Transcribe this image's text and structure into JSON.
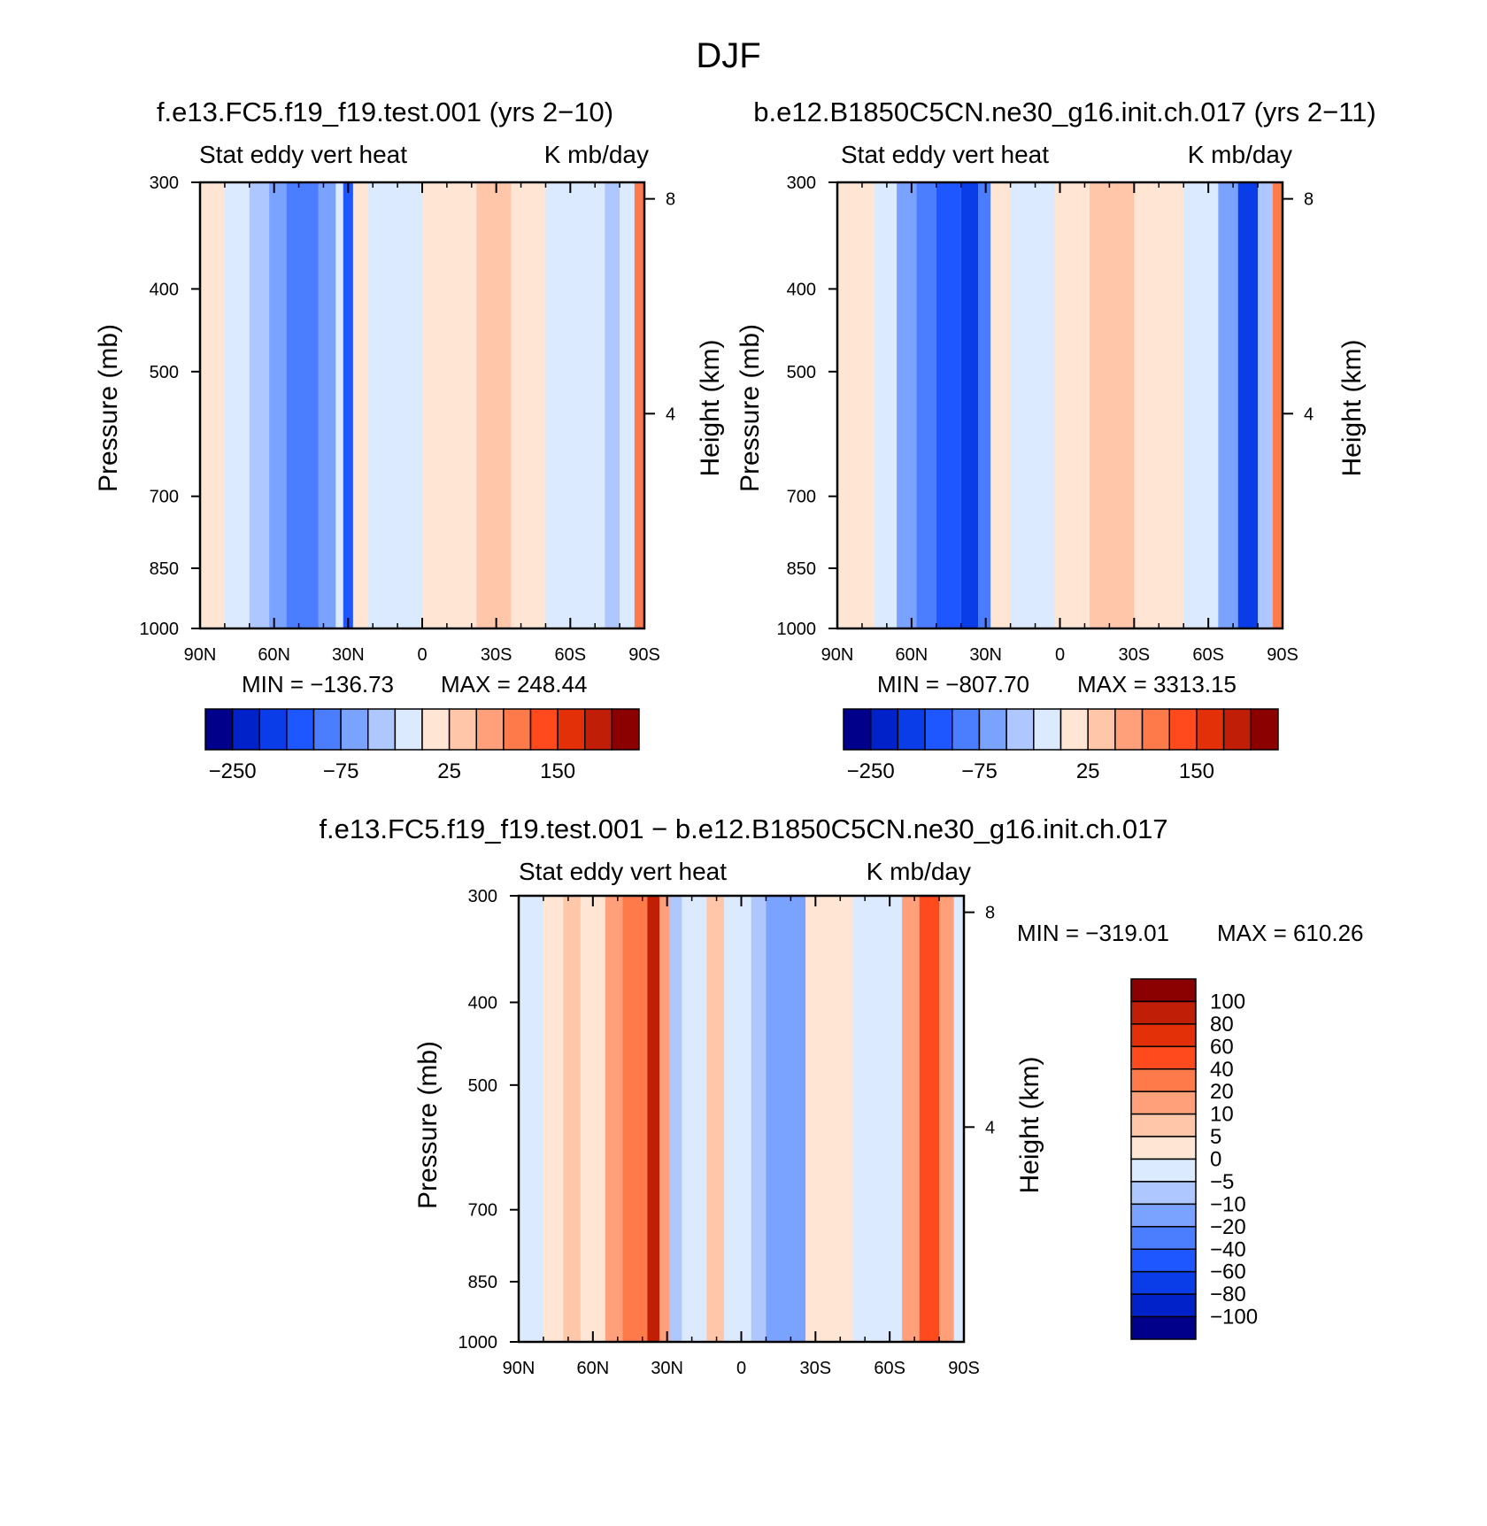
{
  "page_title": "DJF",
  "palette_main": [
    "#00008b",
    "#0022c8",
    "#0a3de8",
    "#1e56ff",
    "#4a7dff",
    "#7aa3ff",
    "#aec8ff",
    "#dbeaff",
    "#ffe5d4",
    "#ffc6aa",
    "#ffa07a",
    "#ff7a4a",
    "#ff4a1e",
    "#e43008",
    "#c01e06",
    "#8b0000"
  ],
  "chart_data": [
    {
      "type": "heatmap",
      "title": "f.e13.FC5.f19_f19.test.001 (yrs 2−10)",
      "variable": "Stat eddy vert heat",
      "units": "K mb/day",
      "xlabel": "",
      "ylabel": "Pressure (mb)",
      "y2label": "Height (km)",
      "x_ticks": [
        "90N",
        "60N",
        "30N",
        "0",
        "30S",
        "60S",
        "90S"
      ],
      "x_tick_values": [
        90,
        60,
        30,
        0,
        -30,
        -60,
        -90
      ],
      "y_ticks": [
        "300",
        "400",
        "500",
        "700",
        "850",
        "1000"
      ],
      "y_tick_values": [
        300,
        400,
        500,
        700,
        850,
        1000
      ],
      "y2_ticks": [
        "8",
        "4"
      ],
      "y2_tick_values": [
        8,
        4
      ],
      "xlim": [
        90,
        -90
      ],
      "ylim": [
        300,
        1000
      ],
      "min_label": "MIN = −136.73",
      "max_label": "MAX = 248.44",
      "colorbar_labels": [
        "−250",
        "−75",
        "25",
        "150"
      ],
      "bands": [
        {
          "lat": [
            90,
            80
          ],
          "v": 1
        },
        {
          "lat": [
            80,
            70
          ],
          "v": -1
        },
        {
          "lat": [
            70,
            62
          ],
          "v": -2
        },
        {
          "lat": [
            62,
            55
          ],
          "v": -3
        },
        {
          "lat": [
            55,
            42
          ],
          "v": -4
        },
        {
          "lat": [
            42,
            35
          ],
          "v": -3
        },
        {
          "lat": [
            35,
            32
          ],
          "v": -1
        },
        {
          "lat": [
            32,
            28
          ],
          "v": -5
        },
        {
          "lat": [
            28,
            22
          ],
          "v": 1
        },
        {
          "lat": [
            22,
            12
          ],
          "v": -1
        },
        {
          "lat": [
            12,
            0
          ],
          "v": -1
        },
        {
          "lat": [
            0,
            -10
          ],
          "v": 1
        },
        {
          "lat": [
            -10,
            -22
          ],
          "v": 1
        },
        {
          "lat": [
            -22,
            -36
          ],
          "v": 2
        },
        {
          "lat": [
            -36,
            -50
          ],
          "v": 1
        },
        {
          "lat": [
            -50,
            -66
          ],
          "v": -1
        },
        {
          "lat": [
            -66,
            -74
          ],
          "v": -1
        },
        {
          "lat": [
            -74,
            -80
          ],
          "v": -2
        },
        {
          "lat": [
            -80,
            -86
          ],
          "v": -1
        },
        {
          "lat": [
            -86,
            -90
          ],
          "v": 4
        }
      ]
    },
    {
      "type": "heatmap",
      "title": "b.e12.B1850C5CN.ne30_g16.init.ch.017 (yrs 2−11)",
      "variable": "Stat eddy vert heat",
      "units": "K mb/day",
      "ylabel": "Pressure (mb)",
      "y2label": "Height (km)",
      "x_ticks": [
        "90N",
        "60N",
        "30N",
        "0",
        "30S",
        "60S",
        "90S"
      ],
      "x_tick_values": [
        90,
        60,
        30,
        0,
        -30,
        -60,
        -90
      ],
      "y_ticks": [
        "300",
        "400",
        "500",
        "700",
        "850",
        "1000"
      ],
      "y_tick_values": [
        300,
        400,
        500,
        700,
        850,
        1000
      ],
      "y2_ticks": [
        "8",
        "4"
      ],
      "y2_tick_values": [
        8,
        4
      ],
      "xlim": [
        90,
        -90
      ],
      "ylim": [
        300,
        1000
      ],
      "min_label": "MIN = −807.70",
      "max_label": "MAX = 3313.15",
      "colorbar_labels": [
        "−250",
        "−75",
        "25",
        "150"
      ],
      "bands": [
        {
          "lat": [
            90,
            75
          ],
          "v": 1
        },
        {
          "lat": [
            75,
            66
          ],
          "v": -1
        },
        {
          "lat": [
            66,
            58
          ],
          "v": -3
        },
        {
          "lat": [
            58,
            50
          ],
          "v": -4
        },
        {
          "lat": [
            50,
            40
          ],
          "v": -5
        },
        {
          "lat": [
            40,
            33
          ],
          "v": -6
        },
        {
          "lat": [
            33,
            28
          ],
          "v": -4
        },
        {
          "lat": [
            28,
            20
          ],
          "v": 1
        },
        {
          "lat": [
            20,
            10
          ],
          "v": -1
        },
        {
          "lat": [
            10,
            2
          ],
          "v": -1
        },
        {
          "lat": [
            2,
            -12
          ],
          "v": 1
        },
        {
          "lat": [
            -12,
            -30
          ],
          "v": 2
        },
        {
          "lat": [
            -30,
            -50
          ],
          "v": 1
        },
        {
          "lat": [
            -50,
            -64
          ],
          "v": -1
        },
        {
          "lat": [
            -64,
            -72
          ],
          "v": -3
        },
        {
          "lat": [
            -72,
            -80
          ],
          "v": -6
        },
        {
          "lat": [
            -80,
            -86
          ],
          "v": -2
        },
        {
          "lat": [
            -86,
            -90
          ],
          "v": 4
        }
      ]
    },
    {
      "type": "heatmap",
      "title": "f.e13.FC5.f19_f19.test.001 − b.e12.B1850C5CN.ne30_g16.init.ch.017",
      "variable": "Stat eddy vert heat",
      "units": "K mb/day",
      "ylabel": "Pressure (mb)",
      "y2label": "Height (km)",
      "x_ticks": [
        "90N",
        "60N",
        "30N",
        "0",
        "30S",
        "60S",
        "90S"
      ],
      "x_tick_values": [
        90,
        60,
        30,
        0,
        -30,
        -60,
        -90
      ],
      "y_ticks": [
        "300",
        "400",
        "500",
        "700",
        "850",
        "1000"
      ],
      "y_tick_values": [
        300,
        400,
        500,
        700,
        850,
        1000
      ],
      "y2_ticks": [
        "8",
        "4"
      ],
      "y2_tick_values": [
        8,
        4
      ],
      "xlim": [
        90,
        -90
      ],
      "ylim": [
        300,
        1000
      ],
      "min_label": "MIN = −319.01",
      "max_label": "MAX = 610.26",
      "colorbar_labels": [
        "100",
        "80",
        "60",
        "40",
        "20",
        "10",
        "5",
        "0",
        "−5",
        "−10",
        "−20",
        "−40",
        "−60",
        "−80",
        "−100"
      ],
      "bands": [
        {
          "lat": [
            90,
            80
          ],
          "v": -1
        },
        {
          "lat": [
            80,
            72
          ],
          "v": 1
        },
        {
          "lat": [
            72,
            65
          ],
          "v": 2
        },
        {
          "lat": [
            65,
            55
          ],
          "v": 1
        },
        {
          "lat": [
            55,
            48
          ],
          "v": 3
        },
        {
          "lat": [
            48,
            38
          ],
          "v": 4
        },
        {
          "lat": [
            38,
            33
          ],
          "v": 7
        },
        {
          "lat": [
            33,
            29
          ],
          "v": 3
        },
        {
          "lat": [
            29,
            24
          ],
          "v": -2
        },
        {
          "lat": [
            24,
            14
          ],
          "v": -1
        },
        {
          "lat": [
            14,
            7
          ],
          "v": 2
        },
        {
          "lat": [
            7,
            -4
          ],
          "v": -1
        },
        {
          "lat": [
            -4,
            -10
          ],
          "v": -2
        },
        {
          "lat": [
            -10,
            -26
          ],
          "v": -3
        },
        {
          "lat": [
            -26,
            -45
          ],
          "v": 1
        },
        {
          "lat": [
            -45,
            -65
          ],
          "v": -1
        },
        {
          "lat": [
            -65,
            -72
          ],
          "v": 3
        },
        {
          "lat": [
            -72,
            -80
          ],
          "v": 5
        },
        {
          "lat": [
            -80,
            -86
          ],
          "v": 3
        },
        {
          "lat": [
            -86,
            -90
          ],
          "v": -1
        }
      ]
    }
  ]
}
